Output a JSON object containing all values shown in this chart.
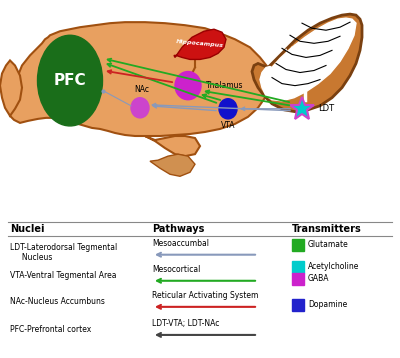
{
  "brain_body_color": "#e8a060",
  "brain_body_edge": "#a05010",
  "cortex_fill": "#c87830",
  "cortex_edge": "#7a4010",
  "white_matter": "#ffffff",
  "hippocampus_color": "#cc1111",
  "pfc_color": "#1a6e1a",
  "thalamus_color": "#cc22cc",
  "nac_color": "#cc44cc",
  "vta_color": "#1111cc",
  "ldt_star_fill": "#00cccc",
  "ldt_star_edge": "#cc44cc",
  "pfc_label": "PFC",
  "thalamus_label": "Thalamus",
  "nac_label": "NAc",
  "vta_label": "VTA",
  "ldt_label": "LDT",
  "hippocampus_label": "Hippocampus",
  "arrow_gray": "#8899bb",
  "arrow_green": "#22aa22",
  "arrow_red": "#cc2222",
  "nuclei_labels": [
    "LDT-Laterodorsal Tegmental\n     Nucleus",
    "VTA-Ventral Tegmental Area",
    "NAc-Nucleus Accumbuns",
    "PFC-Prefrontal cortex"
  ],
  "pathway_labels": [
    "Mesoaccumbal",
    "Mesocortical",
    "Reticular Activating System",
    "LDT-VTA; LDT-NAc"
  ],
  "pathway_colors": [
    "#8899bb",
    "#22aa22",
    "#cc2222",
    "#444444"
  ],
  "transmitter_labels": [
    "Glutamate",
    "Acetylcholine",
    "GABA",
    "Dopamine"
  ],
  "transmitter_colors": [
    "#22aa22",
    "#00cccc",
    "#cc22cc",
    "#2222cc"
  ],
  "header_nuclei": "Nuclei",
  "header_pathways": "Pathways",
  "header_transmitters": "Transmitters"
}
